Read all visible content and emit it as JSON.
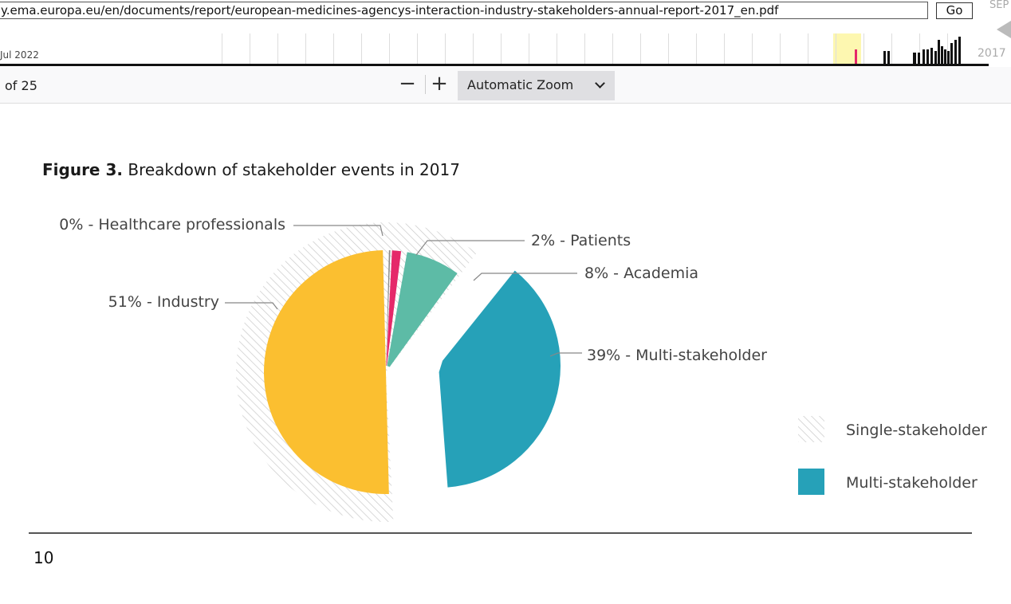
{
  "wayback": {
    "url": "y.ema.europa.eu/en/documents/report/european-medicines-agencys-interaction-industry-stakeholders-annual-report-2017_en.pdf",
    "go_label": "Go",
    "month": "SEP",
    "year": "2017",
    "capture_date": "Jul 2022"
  },
  "viewer": {
    "page_of": "of 25",
    "zoom_out": "−",
    "zoom_in": "+",
    "zoom_value": "Automatic Zoom"
  },
  "figure": {
    "title_bold": "Figure 3.",
    "title_rest": "Breakdown of stakeholder events in 2017"
  },
  "chart_data": {
    "type": "pie",
    "title": "Figure 3. Breakdown of stakeholder events in 2017",
    "slices": [
      {
        "label": "0% - Healthcare professionals",
        "value": 0.4,
        "percent": 0,
        "group": "Single-stakeholder",
        "color": "#8c8c8c"
      },
      {
        "label": "2% - Patients",
        "value": 2,
        "percent": 2,
        "group": "Single-stakeholder",
        "color": "#e5286a"
      },
      {
        "label": "8% - Academia",
        "value": 8,
        "percent": 8,
        "group": "Single-stakeholder",
        "color": "#5dbba6"
      },
      {
        "label": "39% - Multi-stakeholder",
        "value": 39,
        "percent": 39,
        "group": "Multi-stakeholder",
        "color": "#26a1b8"
      },
      {
        "label": "51% - Industry",
        "value": 51,
        "percent": 51,
        "group": "Single-stakeholder",
        "color": "#fbbf30"
      }
    ],
    "legend": [
      {
        "label": "Single-stakeholder",
        "style": "hatched"
      },
      {
        "label": "Multi-stakeholder",
        "color": "#26a1b8"
      }
    ],
    "legend_position": "right"
  },
  "page_number": "10"
}
